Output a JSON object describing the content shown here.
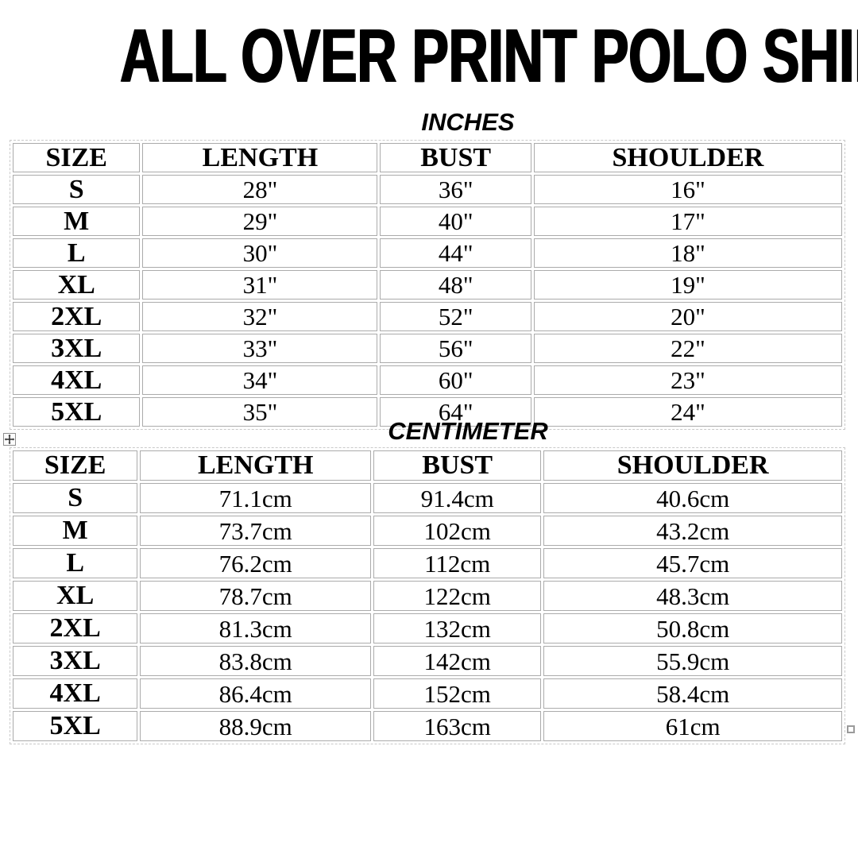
{
  "title": "ALL OVER PRINT POLO SHIRTS",
  "tables": [
    {
      "unit_label": "INCHES",
      "headers": [
        "SIZE",
        "LENGTH",
        "BUST",
        "SHOULDER"
      ],
      "rows": [
        [
          "S",
          "28\"",
          "36\"",
          "16\""
        ],
        [
          "M",
          "29\"",
          "40\"",
          "17\""
        ],
        [
          "L",
          "30\"",
          "44\"",
          "18\""
        ],
        [
          "XL",
          "31\"",
          "48\"",
          "19\""
        ],
        [
          "2XL",
          "32\"",
          "52\"",
          "20\""
        ],
        [
          "3XL",
          "33\"",
          "56\"",
          "22\""
        ],
        [
          "4XL",
          "34\"",
          "60\"",
          "23\""
        ],
        [
          "5XL",
          "35\"",
          "64\"",
          "24\""
        ]
      ]
    },
    {
      "unit_label": "CENTIMETER",
      "headers": [
        "SIZE",
        "LENGTH",
        "BUST",
        "SHOULDER"
      ],
      "rows": [
        [
          "S",
          "71.1cm",
          "91.4cm",
          "40.6cm"
        ],
        [
          "M",
          "73.7cm",
          "102cm",
          "43.2cm"
        ],
        [
          "L",
          "76.2cm",
          "112cm",
          "45.7cm"
        ],
        [
          "XL",
          "78.7cm",
          "122cm",
          "48.3cm"
        ],
        [
          "2XL",
          "81.3cm",
          "132cm",
          "50.8cm"
        ],
        [
          "3XL",
          "83.8cm",
          "142cm",
          "55.9cm"
        ],
        [
          "4XL",
          "86.4cm",
          "152cm",
          "58.4cm"
        ],
        [
          "5XL",
          "88.9cm",
          "163cm",
          "61cm"
        ]
      ]
    }
  ],
  "icons": {
    "table_move_handle": "move-cross-icon",
    "table_resize_handle": "resize-square-icon"
  },
  "colors": {
    "text": "#000000",
    "cell_border": "#ababab",
    "outer_dashed_border": "#c9c9c9",
    "background": "#ffffff"
  }
}
